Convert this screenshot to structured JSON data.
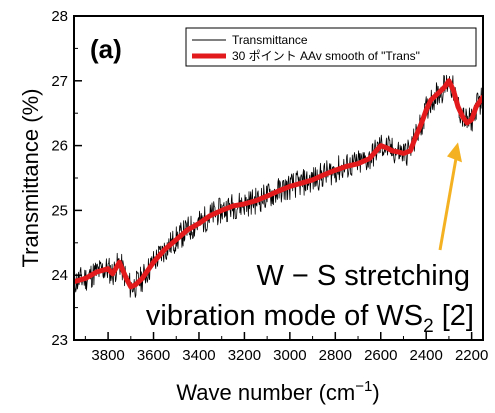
{
  "chart_data": {
    "type": "line",
    "panel_label": "(a)",
    "xlabel": "Wave number (cm",
    "xlabel_sup": "−1",
    "xlabel_close": ")",
    "ylabel": "Transmittance (%)",
    "xlim": [
      3950,
      2150
    ],
    "ylim": [
      23,
      28
    ],
    "x_reversed": true,
    "x_ticks": [
      3800,
      3600,
      3400,
      3200,
      3000,
      2800,
      2600,
      2400,
      2200
    ],
    "y_ticks": [
      23,
      24,
      25,
      26,
      27,
      28
    ],
    "grid": false,
    "legend_position": "top-right",
    "series": [
      {
        "name": "Transmittance",
        "color": "#000000",
        "style": "noisy",
        "x": [
          3950,
          3900,
          3850,
          3800,
          3780,
          3750,
          3720,
          3700,
          3680,
          3650,
          3600,
          3550,
          3500,
          3450,
          3400,
          3350,
          3300,
          3250,
          3200,
          3150,
          3100,
          3050,
          3000,
          2950,
          2900,
          2850,
          2800,
          2750,
          2700,
          2650,
          2620,
          2600,
          2570,
          2550,
          2520,
          2500,
          2470,
          2450,
          2420,
          2400,
          2380,
          2350,
          2320,
          2300,
          2280,
          2260,
          2240,
          2220,
          2200,
          2180,
          2160,
          2150
        ],
        "y": [
          23.9,
          23.95,
          24.05,
          24.1,
          24.02,
          24.2,
          23.95,
          23.82,
          23.85,
          23.95,
          24.2,
          24.4,
          24.55,
          24.7,
          24.8,
          24.92,
          25.0,
          25.07,
          25.1,
          25.15,
          25.22,
          25.3,
          25.37,
          25.42,
          25.47,
          25.55,
          25.62,
          25.68,
          25.72,
          25.8,
          25.92,
          26.0,
          25.96,
          25.92,
          25.9,
          25.88,
          25.92,
          26.1,
          26.35,
          26.55,
          26.7,
          26.8,
          26.9,
          27.0,
          26.85,
          26.6,
          26.45,
          26.35,
          26.4,
          26.6,
          26.7,
          26.75
        ]
      },
      {
        "name": "30 ポイント AAv smooth of \"Trans\"",
        "color": "#e31a1c",
        "style": "smooth",
        "x": [
          3950,
          3900,
          3850,
          3800,
          3780,
          3750,
          3720,
          3700,
          3680,
          3650,
          3600,
          3550,
          3500,
          3450,
          3400,
          3350,
          3300,
          3250,
          3200,
          3150,
          3100,
          3050,
          3000,
          2950,
          2900,
          2850,
          2800,
          2750,
          2700,
          2650,
          2620,
          2600,
          2570,
          2550,
          2520,
          2500,
          2470,
          2450,
          2420,
          2400,
          2380,
          2350,
          2320,
          2300,
          2280,
          2260,
          2240,
          2220,
          2200,
          2180,
          2160,
          2150
        ],
        "y": [
          23.9,
          23.95,
          24.05,
          24.1,
          24.02,
          24.2,
          23.95,
          23.82,
          23.85,
          23.95,
          24.2,
          24.4,
          24.55,
          24.7,
          24.8,
          24.92,
          25.0,
          25.07,
          25.1,
          25.15,
          25.22,
          25.3,
          25.37,
          25.42,
          25.47,
          25.55,
          25.62,
          25.68,
          25.72,
          25.8,
          25.92,
          26.0,
          25.96,
          25.92,
          25.9,
          25.88,
          25.92,
          26.1,
          26.35,
          26.55,
          26.7,
          26.8,
          26.9,
          27.0,
          26.85,
          26.6,
          26.45,
          26.35,
          26.4,
          26.6,
          26.7,
          26.75
        ]
      }
    ],
    "annotation": {
      "line1": "W − S stretching",
      "line2_main": "vibration mode of WS",
      "line2_sub": "2",
      "line2_ref": " [2]",
      "arrow_color": "#f4b223",
      "arrow_target": {
        "x": 2260,
        "y": 26.05
      }
    }
  }
}
